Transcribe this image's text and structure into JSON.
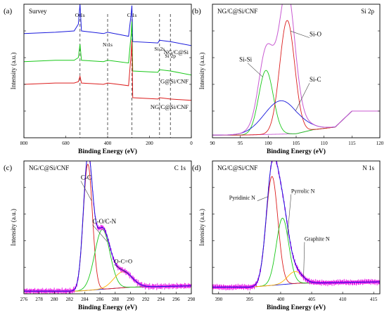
{
  "chart_data": [
    {
      "type": "line",
      "panel_label": "(a)",
      "title": "Survey",
      "xlabel": "Binding Energy (eV)",
      "ylabel": "Intensity (a.u.)",
      "xlim": [
        800,
        0
      ],
      "x_reversed": true,
      "xticks": [
        800,
        600,
        400,
        200,
        0
      ],
      "y_ticks_shown": false,
      "peak_labels": [
        {
          "text": "O 1s",
          "x": 532
        },
        {
          "text": "N 1s",
          "x": 400
        },
        {
          "text": "C 1s",
          "x": 284
        },
        {
          "text": "Si 2s",
          "x": 152
        },
        {
          "text": "Si 2p",
          "x": 100
        }
      ],
      "series": [
        {
          "name": "NG/C@Si",
          "color": "#1a1adc",
          "points": [
            [
              800,
              0.78
            ],
            [
              650,
              0.79
            ],
            [
              560,
              0.8
            ],
            [
              540,
              0.85
            ],
            [
              532,
              1.0
            ],
            [
              525,
              0.8
            ],
            [
              420,
              0.78
            ],
            [
              400,
              0.79
            ],
            [
              300,
              0.76
            ],
            [
              288,
              0.92
            ],
            [
              284,
              0.99
            ],
            [
              280,
              0.72
            ],
            [
              160,
              0.71
            ],
            [
              152,
              0.73
            ],
            [
              100,
              0.72
            ],
            [
              0,
              0.69
            ]
          ]
        },
        {
          "name": "G@Si/CNF",
          "color": "#19c819",
          "points": [
            [
              800,
              0.57
            ],
            [
              650,
              0.58
            ],
            [
              560,
              0.58
            ],
            [
              540,
              0.6
            ],
            [
              532,
              0.7
            ],
            [
              525,
              0.58
            ],
            [
              420,
              0.57
            ],
            [
              400,
              0.58
            ],
            [
              300,
              0.56
            ],
            [
              288,
              0.77
            ],
            [
              284,
              0.87
            ],
            [
              280,
              0.5
            ],
            [
              160,
              0.49
            ],
            [
              152,
              0.51
            ],
            [
              100,
              0.5
            ],
            [
              0,
              0.47
            ]
          ]
        },
        {
          "name": "NG/C@Si/CNF",
          "color": "#dc1e1e",
          "points": [
            [
              800,
              0.4
            ],
            [
              650,
              0.41
            ],
            [
              560,
              0.41
            ],
            [
              540,
              0.42
            ],
            [
              532,
              0.46
            ],
            [
              525,
              0.41
            ],
            [
              420,
              0.4
            ],
            [
              400,
              0.41
            ],
            [
              300,
              0.39
            ],
            [
              288,
              0.62
            ],
            [
              284,
              0.73
            ],
            [
              280,
              0.3
            ],
            [
              160,
              0.29
            ],
            [
              152,
              0.3
            ],
            [
              100,
              0.29
            ],
            [
              0,
              0.28
            ]
          ]
        }
      ]
    },
    {
      "type": "line",
      "panel_label": "(b)",
      "title": "NG/C@Si/CNF",
      "region_label": "Si 2p",
      "xlabel": "Binding Energy (eV)",
      "ylabel": "Intensity (a.u.)",
      "xlim": [
        90,
        120
      ],
      "xticks": [
        90,
        95,
        100,
        105,
        110,
        115,
        120
      ],
      "y_ticks_shown": false,
      "components": [
        {
          "name": "Si-Si",
          "color": "#19c819",
          "center": 99.6,
          "height": 0.48,
          "width": 1.3
        },
        {
          "name": "Si-O",
          "color": "#dc1e1e",
          "center": 103.4,
          "height": 0.85,
          "width": 1.35
        },
        {
          "name": "Si-C",
          "color": "#1a1adc",
          "center": 102.3,
          "height": 0.25,
          "width": 3.0
        }
      ],
      "envelope_color": "#c85ad2",
      "baseline": {
        "color": "#c85ad2",
        "points": [
          [
            95,
            0.02
          ],
          [
            105,
            0.03
          ],
          [
            108,
            0.06
          ],
          [
            112,
            0.08
          ],
          [
            115,
            0.2
          ]
        ]
      }
    },
    {
      "type": "line",
      "panel_label": "(c)",
      "title": "NG/C@Si/CNF",
      "region_label": "C 1s",
      "xlabel": "Binding Energy (eV)",
      "ylabel": "Intensity (a.u.)",
      "xlim": [
        276,
        298
      ],
      "xticks": [
        276,
        278,
        280,
        282,
        284,
        286,
        288,
        290,
        292,
        294,
        296,
        298
      ],
      "y_ticks_shown": false,
      "components": [
        {
          "name": "C-C",
          "color": "#dc1e1e",
          "center": 284.4,
          "height": 0.95,
          "width": 0.6
        },
        {
          "name": "C-O/C-N",
          "color": "#19c819",
          "center": 286.3,
          "height": 0.45,
          "width": 1.0
        },
        {
          "name": "O-C=O",
          "color": "#ffb400",
          "center": 289.0,
          "height": 0.12,
          "width": 1.2
        }
      ],
      "envelope_color": "#1a1adc",
      "raw_color": "#e600e6",
      "baseline": {
        "color": "#1a1adc",
        "points": [
          [
            276,
            0.02
          ],
          [
            283,
            0.02
          ],
          [
            290,
            0.05
          ],
          [
            298,
            0.06
          ]
        ]
      }
    },
    {
      "type": "line",
      "panel_label": "(d)",
      "title": "NG/C@Si/CNF",
      "region_label": "N 1s",
      "xlabel": "Binding Energy (eV)",
      "ylabel": "Intensity (a.u.)",
      "xlim": [
        389,
        416
      ],
      "xticks": [
        390,
        395,
        400,
        405,
        410,
        415
      ],
      "y_ticks_shown": false,
      "components": [
        {
          "name": "Pyridinic N",
          "color": "#dc1e1e",
          "center": 398.6,
          "height": 0.82,
          "width": 0.95
        },
        {
          "name": "Pyrrolic N",
          "color": "#19c819",
          "center": 400.3,
          "height": 0.5,
          "width": 1.0
        },
        {
          "name": "Graphite N",
          "color": "#ffb400",
          "center": 402.3,
          "height": 0.09,
          "width": 1.2
        }
      ],
      "envelope_color": "#1a1adc",
      "raw_color": "#e600e6",
      "baseline": {
        "color": "#1a1adc",
        "points": [
          [
            389,
            0.05
          ],
          [
            395,
            0.05
          ],
          [
            403,
            0.08
          ],
          [
            416,
            0.09
          ]
        ]
      }
    }
  ]
}
